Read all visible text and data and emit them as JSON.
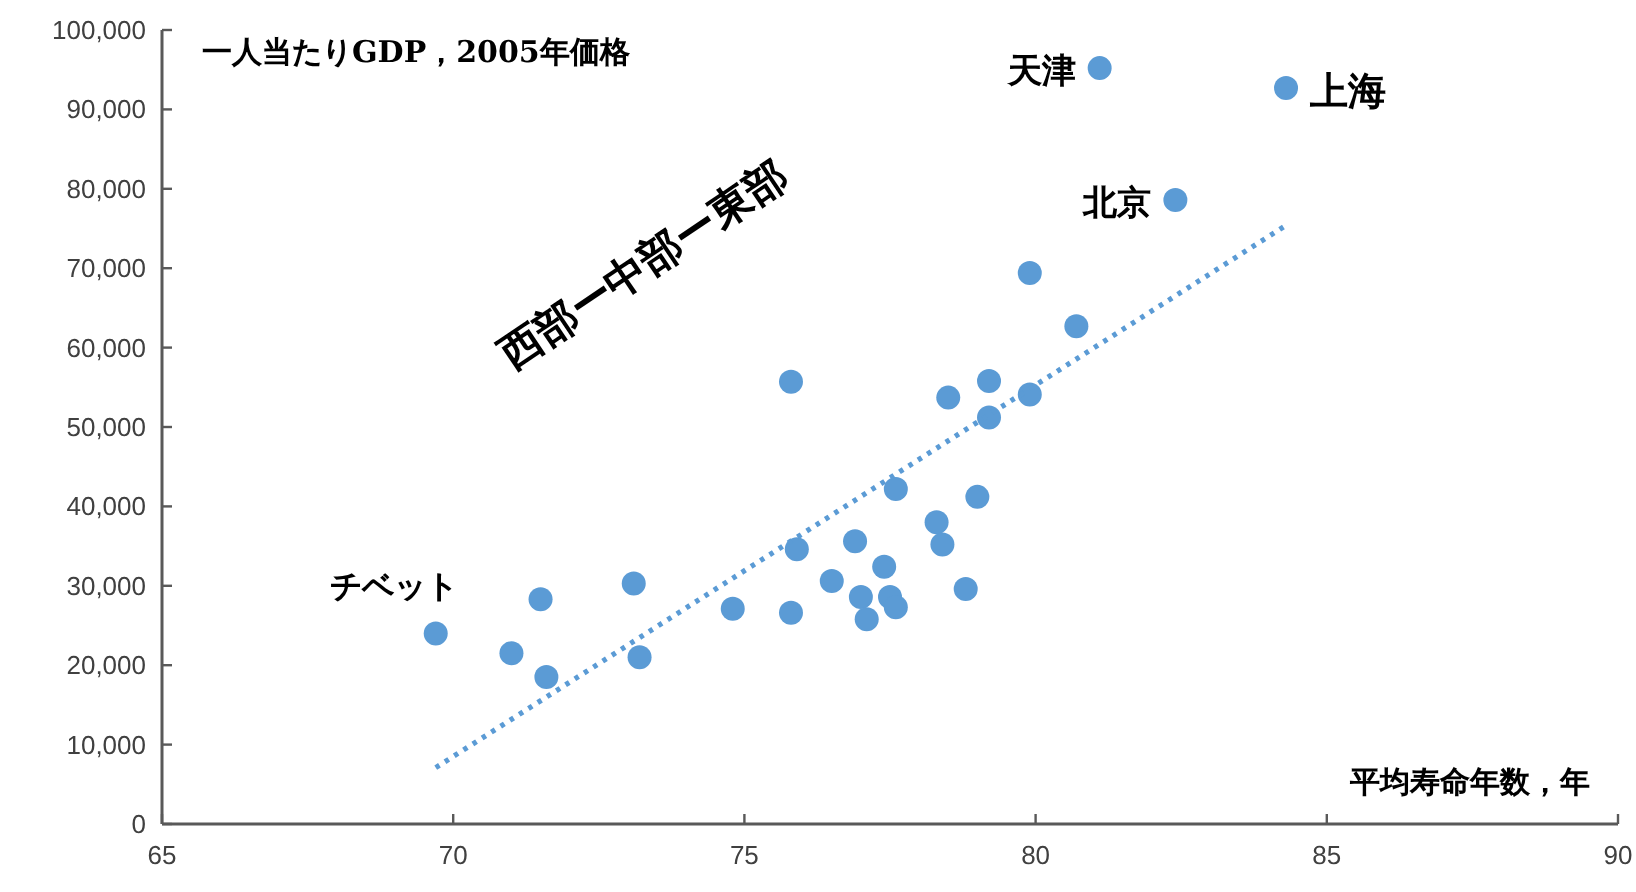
{
  "chart_data": {
    "type": "scatter",
    "xlabel": "平均寿命年数，年",
    "ylabel": "一人当たりGDP，2005年価格",
    "annotations": [
      "西部ー中部ー東部",
      {
        "text": "チベット",
        "x": 69.7,
        "y": 24000
      },
      {
        "text": "天津",
        "x": 81.1,
        "y": 95200
      },
      {
        "text": "上海",
        "x": 84.3,
        "y": 92700
      },
      {
        "text": "北京",
        "x": 82.4,
        "y": 78600
      }
    ],
    "series": [
      {
        "color": "#5b9bd5",
        "marker": "circle",
        "x": [
          69.7,
          71.0,
          71.5,
          71.6,
          73.1,
          73.2,
          74.8,
          75.8,
          75.8,
          75.9,
          76.5,
          76.9,
          78.5,
          79.2,
          79.9,
          79.2,
          79.9,
          80.7,
          81.1,
          84.3,
          82.4,
          77.6,
          79.0,
          78.3,
          78.4,
          77.4,
          77.0,
          77.5,
          77.6,
          77.1,
          78.8
        ],
        "values": [
          24000,
          21500,
          28300,
          18500,
          30300,
          21000,
          27100,
          55700,
          26600,
          34600,
          30600,
          35600,
          53700,
          55800,
          54100,
          51200,
          69400,
          62700,
          95200,
          92700,
          78600,
          42200,
          41200,
          38000,
          35200,
          32400,
          28600,
          28600,
          27300,
          25800,
          29600
        ]
      },
      {
        "type": "line",
        "color": "#5b9bd5",
        "line_style": "dotted",
        "x": [
          69.7,
          84.3
        ],
        "values": [
          7100,
          75400
        ]
      }
    ],
    "xlim": [
      65,
      90
    ],
    "xticks": [
      65,
      70,
      75,
      80,
      85,
      90
    ],
    "ylim": [
      0,
      100000
    ],
    "yticks": [
      0,
      {
        "value": 10000,
        "label": "10,000"
      },
      {
        "value": 20000,
        "label": "20,000"
      },
      {
        "value": 30000,
        "label": "30,000"
      },
      {
        "value": 40000,
        "label": "40,000"
      },
      {
        "value": 50000,
        "label": "50,000"
      },
      {
        "value": 60000,
        "label": "60,000"
      },
      {
        "value": 70000,
        "label": "70,000"
      },
      {
        "value": 80000,
        "label": "80,000"
      },
      {
        "value": 90000,
        "label": "90,000"
      },
      {
        "value": 100000,
        "label": "100,000"
      }
    ],
    "grid": false
  }
}
